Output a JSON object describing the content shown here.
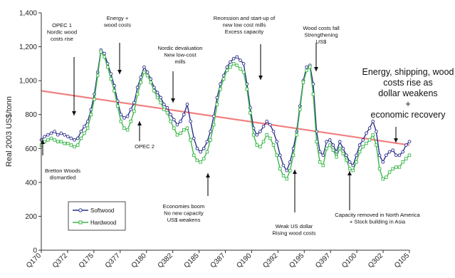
{
  "chart_data": {
    "type": "line",
    "ylabel": "Real 2003 US$/tonn",
    "ylim": [
      0,
      1400
    ],
    "yticks": [
      "0",
      "200",
      "400",
      "600",
      "800",
      "1,000",
      "1,200",
      "1,400"
    ],
    "xtick_labels": [
      "Q170",
      "Q372",
      "Q175",
      "Q377",
      "Q180",
      "Q382",
      "Q185",
      "Q387",
      "Q190",
      "Q392",
      "Q195",
      "Q397",
      "Q100",
      "Q302",
      "Q105"
    ],
    "grid": false,
    "legend_position": "lower-left",
    "series": [
      {
        "name": "Softwood",
        "color": "#2a2f8a",
        "values": [
          650,
          670,
          680,
          690,
          700,
          680,
          690,
          680,
          670,
          660,
          650,
          660,
          700,
          730,
          760,
          830,
          920,
          1050,
          1180,
          1160,
          1100,
          1040,
          970,
          880,
          800,
          780,
          790,
          830,
          870,
          960,
          1020,
          1080,
          1050,
          1010,
          960,
          930,
          900,
          860,
          840,
          800,
          770,
          740,
          760,
          800,
          860,
          760,
          660,
          600,
          580,
          600,
          640,
          700,
          790,
          900,
          980,
          1030,
          1080,
          1110,
          1130,
          1140,
          1120,
          1100,
          980,
          840,
          720,
          680,
          700,
          730,
          760,
          740,
          700,
          640,
          560,
          500,
          470,
          520,
          600,
          700,
          850,
          1000,
          1080,
          1090,
          980,
          700,
          580,
          560,
          640,
          650,
          620,
          580,
          640,
          600,
          560,
          520,
          500,
          560,
          620,
          650,
          690,
          720,
          760,
          700,
          560,
          520,
          560,
          580,
          590,
          560,
          560,
          580,
          620,
          640
        ]
      },
      {
        "name": "Hardwood",
        "color": "#3db84a",
        "values": [
          620,
          640,
          650,
          660,
          650,
          640,
          640,
          630,
          630,
          620,
          610,
          620,
          660,
          690,
          720,
          800,
          890,
          1030,
          1170,
          1140,
          1080,
          1010,
          940,
          850,
          760,
          720,
          710,
          760,
          820,
          920,
          990,
          1050,
          1030,
          990,
          940,
          900,
          870,
          830,
          810,
          760,
          720,
          680,
          690,
          710,
          720,
          650,
          560,
          530,
          520,
          540,
          580,
          650,
          740,
          860,
          950,
          1010,
          1060,
          1080,
          1100,
          1090,
          1070,
          1050,
          950,
          810,
          680,
          620,
          610,
          640,
          680,
          660,
          620,
          560,
          480,
          440,
          420,
          470,
          560,
          680,
          830,
          990,
          1060,
          1080,
          920,
          640,
          520,
          500,
          600,
          620,
          590,
          550,
          600,
          570,
          530,
          480,
          470,
          520,
          580,
          610,
          630,
          650,
          680,
          620,
          480,
          420,
          430,
          460,
          480,
          490,
          490,
          520,
          540,
          560
        ]
      }
    ],
    "trend_line": {
      "color": "#f08080",
      "start": 940,
      "end": 620
    },
    "annotations": [
      {
        "lines": [
          "OPEC 1",
          "Nordic wood",
          "costs rise"
        ],
        "size": "small"
      },
      {
        "lines": [
          "Energy +",
          "wood costs"
        ],
        "size": "small"
      },
      {
        "lines": [
          "Nordic devaluation",
          "New low-cost",
          "mills"
        ],
        "size": "small"
      },
      {
        "lines": [
          "Recession and start-up of",
          "new low cost mills",
          "Excess capacity"
        ],
        "size": "small"
      },
      {
        "lines": [
          "Wood costs fall",
          "Strengthening",
          "US$"
        ],
        "size": "small"
      },
      {
        "lines": [
          "Energy, shipping, wood",
          "costs rise as",
          "dollar weakens",
          "+",
          "economic recovery"
        ],
        "size": "large"
      },
      {
        "lines": [
          "Bretton Woods",
          "dismantled"
        ],
        "size": "small"
      },
      {
        "lines": [
          "OPEC 2"
        ],
        "size": "small"
      },
      {
        "lines": [
          "Economies boom",
          "No new capacity",
          "US$ weakens"
        ],
        "size": "small"
      },
      {
        "lines": [
          "Weak US dollar",
          "Rising wood costs"
        ],
        "size": "small"
      },
      {
        "lines": [
          "Capacity removed in North America",
          "+ Stock building in Asia"
        ],
        "size": "small"
      }
    ]
  }
}
